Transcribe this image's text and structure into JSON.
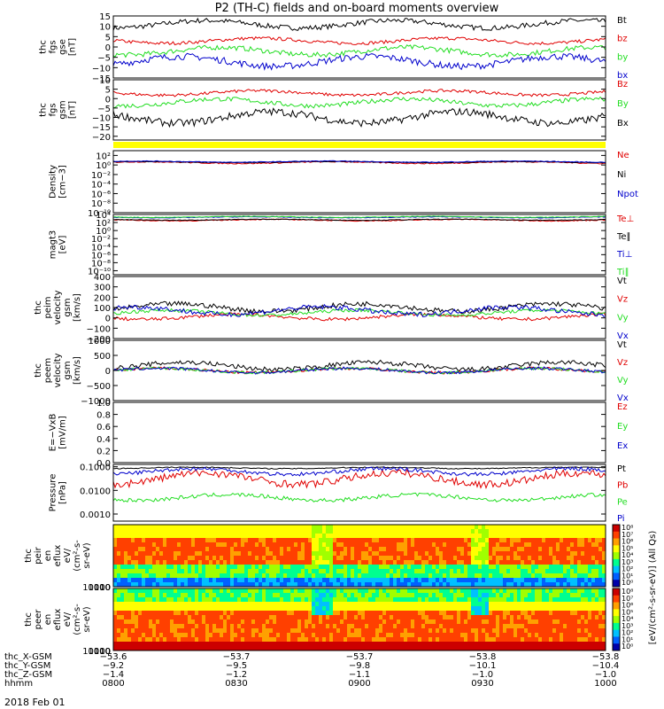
{
  "title": "P2 (TH-C) fields and on-board moments overview",
  "date_label": "2018 Feb 01",
  "colors": {
    "black": "#000000",
    "red": "#e00000",
    "green": "#22dd22",
    "blue": "#0000cc",
    "yellow": "#ffff00"
  },
  "chart_data": [
    {
      "type": "line",
      "id": "fgs-gse",
      "ylabel": [
        "thc",
        "fgs",
        "gse",
        "[nT]"
      ],
      "ylim": [
        -15,
        15
      ],
      "ticks": [
        "15",
        "10",
        "5",
        "0",
        "−5",
        "−10",
        "−15"
      ],
      "tick_values": [
        15,
        10,
        5,
        0,
        -5,
        -10,
        -15
      ],
      "series": [
        {
          "name": "Bt",
          "color": "#000000",
          "level": 11,
          "amp": 3
        },
        {
          "name": "bz",
          "color": "#e00000",
          "level": 3,
          "amp": 2
        },
        {
          "name": "by",
          "color": "#22dd22",
          "level": -2,
          "amp": 3
        },
        {
          "name": "bx",
          "color": "#0000cc",
          "level": -7,
          "amp": 4
        }
      ]
    },
    {
      "type": "line",
      "id": "fgs-gsm",
      "ylabel": [
        "thc",
        "fgs",
        "gsm",
        "[nT]"
      ],
      "ylim": [
        -22,
        10
      ],
      "ticks": [
        "10",
        "5",
        "0",
        "−5",
        "−10",
        "−15",
        "−20"
      ],
      "tick_values": [
        10,
        5,
        0,
        -5,
        -10,
        -15,
        -20
      ],
      "series": [
        {
          "name": "Bz",
          "color": "#e00000",
          "level": 3,
          "amp": 2
        },
        {
          "name": "By",
          "color": "#22dd22",
          "level": -2,
          "amp": 3
        },
        {
          "name": "Bx",
          "color": "#000000",
          "level": -10,
          "amp": 5
        }
      ]
    },
    {
      "type": "line",
      "id": "density",
      "ylabel": [
        "Density",
        "[cm−3]"
      ],
      "ylim": [
        -10,
        3
      ],
      "log": true,
      "ticks": [
        "10²",
        "10⁰",
        "10⁻²",
        "10⁻⁴",
        "10⁻⁶",
        "10⁻⁸",
        "10⁻¹⁰"
      ],
      "tick_values": [
        2,
        0,
        -2,
        -4,
        -6,
        -8,
        -10
      ],
      "series": [
        {
          "name": "Ne",
          "color": "#e00000",
          "level": 0.5,
          "amp": 0.3
        },
        {
          "name": "Ni",
          "color": "#000000",
          "level": 0.6,
          "amp": 0.2
        },
        {
          "name": "Npot",
          "color": "#0000cc",
          "level": 0.7,
          "amp": 0.2
        }
      ]
    },
    {
      "type": "line",
      "id": "temperature",
      "ylabel": [
        "magt3",
        "[eV]"
      ],
      "ylim": [
        -11,
        4
      ],
      "log": true,
      "ticks": [
        "10⁴",
        "10²",
        "10⁰",
        "10⁻²",
        "10⁻⁴",
        "10⁻⁶",
        "10⁻⁸",
        "10⁻¹⁰"
      ],
      "tick_values": [
        4,
        2,
        0,
        -2,
        -4,
        -6,
        -8,
        -10
      ],
      "series": [
        {
          "name": "Te⊥",
          "color": "#e00000",
          "level": 2.6,
          "amp": 0.3
        },
        {
          "name": "Te∥",
          "color": "#000000",
          "level": 2.7,
          "amp": 0.2
        },
        {
          "name": "Ti⊥",
          "color": "#0000cc",
          "level": 3.3,
          "amp": 0.2
        },
        {
          "name": "Ti∥",
          "color": "#22dd22",
          "level": 3.4,
          "amp": 0.2
        }
      ]
    },
    {
      "type": "line",
      "id": "peim-velocity",
      "ylabel": [
        "thc",
        "peim",
        "velocity",
        "gsm",
        "[km/s]"
      ],
      "ylim": [
        -200,
        400
      ],
      "ticks": [
        "400",
        "300",
        "200",
        "100",
        "0",
        "−100",
        "−200"
      ],
      "tick_values": [
        400,
        300,
        200,
        100,
        0,
        -100,
        -200
      ],
      "series": [
        {
          "name": "Vt",
          "color": "#000000",
          "level": 100,
          "amp": 60
        },
        {
          "name": "Vz",
          "color": "#e00000",
          "level": 10,
          "amp": 40
        },
        {
          "name": "Vy",
          "color": "#22dd22",
          "level": 50,
          "amp": 40
        },
        {
          "name": "Vx",
          "color": "#0000cc",
          "level": 70,
          "amp": 60
        }
      ]
    },
    {
      "type": "line",
      "id": "peem-velocity",
      "ylabel": [
        "thc",
        "peem",
        "velocity",
        "gsm",
        "[km/s]"
      ],
      "ylim": [
        -1000,
        1000
      ],
      "ticks": [
        "1000",
        "500",
        "0",
        "−500",
        "−1000"
      ],
      "tick_values": [
        1000,
        500,
        0,
        -500,
        -1000
      ],
      "series": [
        {
          "name": "Vt",
          "color": "#000000",
          "level": 150,
          "amp": 200
        },
        {
          "name": "Vz",
          "color": "#e00000",
          "level": 0,
          "amp": 120
        },
        {
          "name": "Vy",
          "color": "#22dd22",
          "level": 0,
          "amp": 120
        },
        {
          "name": "Vx",
          "color": "#0000cc",
          "level": 0,
          "amp": 120
        }
      ]
    },
    {
      "type": "line",
      "id": "efield",
      "ylabel": [
        "E=−VxB",
        "[mV/m]"
      ],
      "ylim": [
        0,
        1
      ],
      "ticks": [
        "1.0",
        "0.8",
        "0.6",
        "0.4",
        "0.2",
        "0.0"
      ],
      "tick_values": [
        1,
        0.8,
        0.6,
        0.4,
        0.2,
        0
      ],
      "series": [
        {
          "name": "Ez",
          "color": "#e00000"
        },
        {
          "name": "Ey",
          "color": "#22dd22"
        },
        {
          "name": "Ex",
          "color": "#0000cc"
        }
      ]
    },
    {
      "type": "line",
      "id": "pressure",
      "ylabel": [
        "Pressure",
        "[nPa]"
      ],
      "ylim": [
        -3.3,
        -0.9
      ],
      "log": true,
      "ticks": [
        "0.1000",
        "0.0100",
        "0.0010"
      ],
      "tick_values": [
        -1,
        -2,
        -3
      ],
      "series": [
        {
          "name": "Pt",
          "color": "#000000",
          "level": -1.05,
          "amp": 0.05
        },
        {
          "name": "Pb",
          "color": "#e00000",
          "level": -1.5,
          "amp": 0.4
        },
        {
          "name": "Pe",
          "color": "#22dd22",
          "level": -2.3,
          "amp": 0.2
        },
        {
          "name": "Pi",
          "color": "#0000cc",
          "level": -1.2,
          "amp": 0.2
        }
      ]
    },
    {
      "type": "heatmap",
      "id": "peir-spec",
      "ylabel": [
        "thc",
        "peir",
        "en",
        "eflux",
        "eV/",
        "(cm²-s-",
        "sr-eV)"
      ],
      "ylim": [
        5,
        20000
      ],
      "log": true,
      "ticks": [
        "10000",
        "1000",
        "100",
        "10"
      ],
      "tick_values": [
        4,
        3,
        2,
        1
      ]
    },
    {
      "type": "heatmap",
      "id": "peer-spec",
      "ylabel": [
        "thc",
        "peer",
        "en",
        "eflux",
        "eV/",
        "(cm²-s-",
        "sr-eV)"
      ],
      "ylim": [
        5,
        20000
      ],
      "log": true,
      "ticks": [
        "10000",
        "1000",
        "100",
        "10"
      ],
      "tick_values": [
        4,
        3,
        2,
        1
      ]
    }
  ],
  "colorbar": {
    "label": "[eV/(cm²-s-sr-eV)] (All Qs)",
    "ticks_top": [
      "10⁸",
      "10⁷",
      "10⁶",
      "10⁵",
      "10⁴",
      "10³",
      "10²",
      "10¹",
      "10⁰"
    ],
    "ticks_bottom": [
      "10⁸",
      "10⁷",
      "10⁶",
      "10⁵",
      "10⁴",
      "10³",
      "10²",
      "10¹",
      "10⁰"
    ]
  },
  "x_axis": {
    "rows": [
      {
        "label": "thc_X-GSM",
        "values": [
          "−53.6",
          "−53.7",
          "−53.7",
          "−53.8",
          "−53.8"
        ]
      },
      {
        "label": "thc_Y-GSM",
        "values": [
          "−9.2",
          "−9.5",
          "−9.8",
          "−10.1",
          "−10.4"
        ]
      },
      {
        "label": "thc_Z-GSM",
        "values": [
          "−1.4",
          "−1.2",
          "−1.1",
          "−1.0",
          "−1.0"
        ]
      },
      {
        "label": "hhmm",
        "values": [
          "0800",
          "0830",
          "0900",
          "0930",
          "1000"
        ]
      }
    ]
  }
}
